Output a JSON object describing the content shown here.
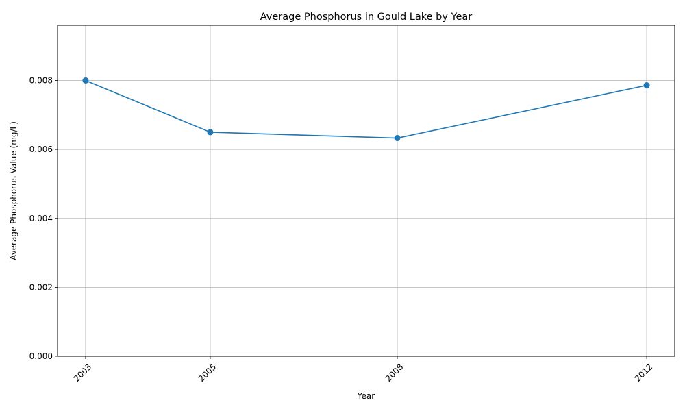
{
  "chart_data": {
    "type": "line",
    "title": "Average Phosphorus in Gould Lake by Year",
    "xlabel": "Year",
    "ylabel": "Average Phosphorus Value (mg/L)",
    "x": [
      2003,
      2005,
      2008,
      2012
    ],
    "x_tick_labels": [
      "2003",
      "2005",
      "2008",
      "2012"
    ],
    "xlim": [
      2002.55,
      2012.45
    ],
    "ylim": [
      0,
      0.0096
    ],
    "y_ticks": [
      0,
      0.002,
      0.004,
      0.006,
      0.008
    ],
    "y_tick_labels": [
      "0.000",
      "0.002",
      "0.004",
      "0.006",
      "0.008"
    ],
    "series": [
      {
        "values": [
          0.008,
          0.0065,
          0.00633,
          0.00786
        ]
      }
    ],
    "grid": true,
    "markers": true,
    "line_color": "#1f77b4",
    "grid_color": "#b0b0b0"
  }
}
